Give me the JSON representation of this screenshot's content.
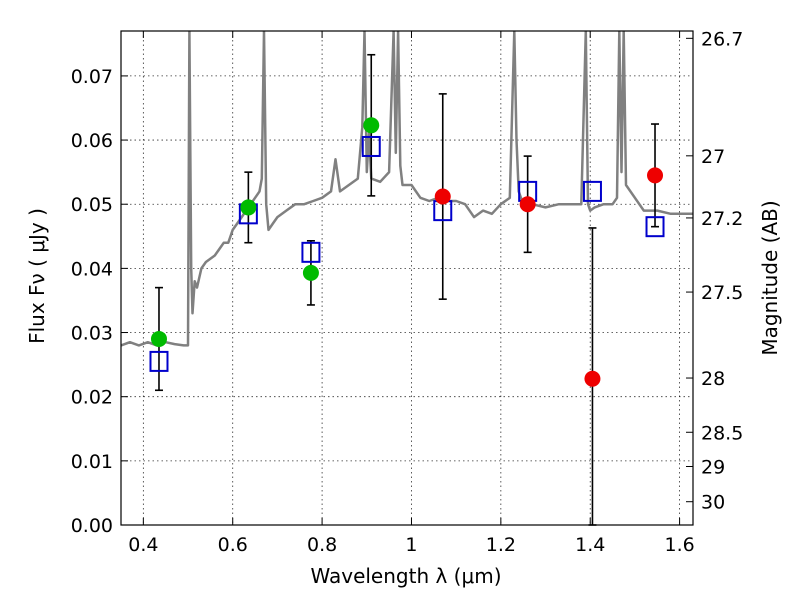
{
  "chart_data": {
    "type": "scatter",
    "xlabel": "Wavelength  λ (μm)",
    "ylabel": "Flux  Fν  ( μJy )",
    "ylabel_right": "Magnitude (AB)",
    "xlim": [
      0.35,
      1.63
    ],
    "ylim": [
      0.0,
      0.077
    ],
    "grid": true,
    "x_ticks": [
      0.4,
      0.6,
      0.8,
      1.0,
      1.2,
      1.4,
      1.6
    ],
    "x_tick_labels": [
      "0.4",
      "0.6",
      "0.8",
      "1",
      "1.2",
      "1.4",
      "1.6"
    ],
    "y_ticks": [
      0.0,
      0.01,
      0.02,
      0.03,
      0.04,
      0.05,
      0.06,
      0.07
    ],
    "y_tick_labels": [
      "0.00",
      "0.01",
      "0.02",
      "0.03",
      "0.04",
      "0.05",
      "0.06",
      "0.07"
    ],
    "right_ticks": [
      {
        "label": "26.7",
        "mag": 26.7
      },
      {
        "label": "27",
        "mag": 27.0
      },
      {
        "label": "27.2",
        "mag": 27.2
      },
      {
        "label": "27.5",
        "mag": 27.5
      },
      {
        "label": "28",
        "mag": 28.0
      },
      {
        "label": "28.5",
        "mag": 28.5
      },
      {
        "label": "29",
        "mag": 29.0
      },
      {
        "label": "30",
        "mag": 30.0
      }
    ],
    "series": [
      {
        "marker": "line",
        "color": "#808080",
        "x": [
          0.35,
          0.37,
          0.39,
          0.41,
          0.43,
          0.45,
          0.47,
          0.49,
          0.5,
          0.503,
          0.507,
          0.51,
          0.515,
          0.52,
          0.53,
          0.54,
          0.56,
          0.57,
          0.58,
          0.59,
          0.6,
          0.61,
          0.62,
          0.63,
          0.64,
          0.65,
          0.66,
          0.665,
          0.67,
          0.675,
          0.68,
          0.69,
          0.7,
          0.72,
          0.74,
          0.76,
          0.78,
          0.8,
          0.82,
          0.83,
          0.84,
          0.86,
          0.88,
          0.89,
          0.895,
          0.9,
          0.905,
          0.91,
          0.93,
          0.95,
          0.96,
          0.965,
          0.97,
          0.975,
          0.98,
          1.0,
          1.02,
          1.04,
          1.06,
          1.08,
          1.1,
          1.12,
          1.14,
          1.16,
          1.18,
          1.2,
          1.22,
          1.23,
          1.235,
          1.24,
          1.25,
          1.27,
          1.3,
          1.33,
          1.36,
          1.38,
          1.39,
          1.395,
          1.4,
          1.41,
          1.43,
          1.45,
          1.46,
          1.465,
          1.47,
          1.475,
          1.48,
          1.5,
          1.52,
          1.55,
          1.58,
          1.6,
          1.63
        ],
        "y": [
          0.028,
          0.0285,
          0.028,
          0.0285,
          0.028,
          0.0285,
          0.0282,
          0.028,
          0.028,
          0.077,
          0.04,
          0.033,
          0.038,
          0.037,
          0.04,
          0.041,
          0.042,
          0.043,
          0.044,
          0.044,
          0.046,
          0.047,
          0.048,
          0.049,
          0.05,
          0.051,
          0.052,
          0.054,
          0.077,
          0.05,
          0.046,
          0.047,
          0.048,
          0.049,
          0.05,
          0.05,
          0.0505,
          0.051,
          0.052,
          0.057,
          0.052,
          0.053,
          0.054,
          0.062,
          0.077,
          0.055,
          0.061,
          0.054,
          0.0535,
          0.055,
          0.077,
          0.058,
          0.077,
          0.056,
          0.053,
          0.053,
          0.051,
          0.0505,
          0.051,
          0.0505,
          0.0505,
          0.05,
          0.048,
          0.049,
          0.0485,
          0.05,
          0.051,
          0.077,
          0.06,
          0.052,
          0.05,
          0.05,
          0.0495,
          0.05,
          0.05,
          0.05,
          0.077,
          0.05,
          0.049,
          0.0495,
          0.05,
          0.05,
          0.051,
          0.077,
          0.055,
          0.077,
          0.053,
          0.051,
          0.049,
          0.049,
          0.0485,
          0.0485,
          0.0485
        ]
      },
      {
        "marker": "open-square",
        "color": "#0000cc",
        "x": [
          0.435,
          0.635,
          0.775,
          0.91,
          1.07,
          1.26,
          1.405,
          1.545
        ],
        "y": [
          0.0255,
          0.0485,
          0.0425,
          0.059,
          0.049,
          0.052,
          0.052,
          0.0465
        ]
      },
      {
        "marker": "filled-circle",
        "color": "#00bb00",
        "x": [
          0.435,
          0.635,
          0.775,
          0.91
        ],
        "y": [
          0.029,
          0.0495,
          0.0393,
          0.0623
        ],
        "yerr": [
          0.008,
          0.0055,
          0.005,
          0.011
        ]
      },
      {
        "marker": "filled-circle",
        "color": "#ee0000",
        "x": [
          1.07,
          1.26,
          1.405,
          1.545
        ],
        "y": [
          0.0512,
          0.05,
          0.0228,
          0.0545
        ],
        "yerr": [
          0.016,
          0.0075,
          0.0235,
          0.008
        ]
      }
    ]
  }
}
